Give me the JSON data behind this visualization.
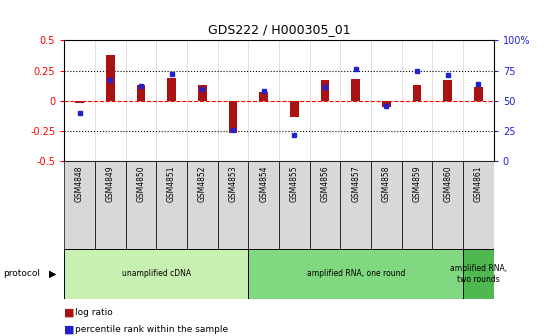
{
  "title": "GDS222 / H000305_01",
  "samples": [
    "GSM4848",
    "GSM4849",
    "GSM4850",
    "GSM4851",
    "GSM4852",
    "GSM4853",
    "GSM4854",
    "GSM4855",
    "GSM4856",
    "GSM4857",
    "GSM4858",
    "GSM4859",
    "GSM4860",
    "GSM4861"
  ],
  "log_ratio": [
    -0.02,
    0.38,
    0.13,
    0.19,
    0.13,
    -0.27,
    0.07,
    -0.13,
    0.17,
    0.18,
    -0.05,
    0.13,
    0.17,
    0.11
  ],
  "percentile": [
    40,
    67,
    62,
    72,
    60,
    26,
    58,
    22,
    61,
    76,
    46,
    75,
    71,
    64
  ],
  "protocols": [
    {
      "label": "unamplified cDNA",
      "start": 0,
      "end": 5,
      "color": "#c8f0b0"
    },
    {
      "label": "amplified RNA, one round",
      "start": 6,
      "end": 12,
      "color": "#80d880"
    },
    {
      "label": "amplified RNA,\ntwo rounds",
      "start": 13,
      "end": 13,
      "color": "#50b850"
    }
  ],
  "bar_color": "#aa1111",
  "dot_color": "#2222cc",
  "ylim_left": [
    -0.5,
    0.5
  ],
  "ylim_right": [
    0,
    100
  ],
  "yticks_left": [
    -0.5,
    -0.25,
    0,
    0.25,
    0.5
  ],
  "yticks_right": [
    0,
    25,
    50,
    75,
    100
  ],
  "background_color": "#ffffff"
}
